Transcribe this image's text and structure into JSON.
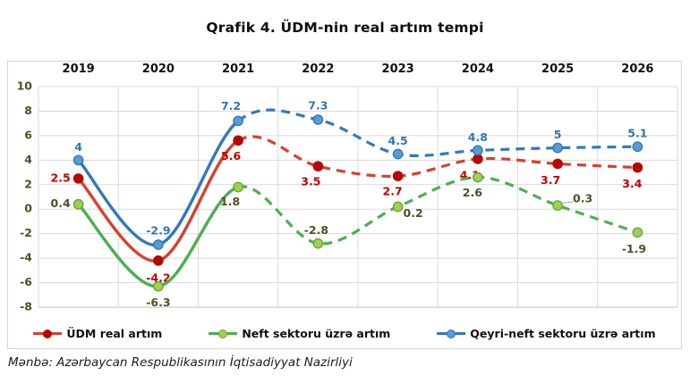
{
  "title": "Qrafik 4. ÜDM-nin real artım tempi",
  "source_note": "Mənbə: Azərbaycan Respublikasının İqtisadiyyat Nazirliyi",
  "chart_data": {
    "type": "line",
    "smooth": true,
    "title": "Qrafik 4. ÜDM-nin real artım tempi",
    "categories": [
      "2019",
      "2020",
      "2021",
      "2022",
      "2023",
      "2024",
      "2025",
      "2026"
    ],
    "ylim": [
      -8,
      10
    ],
    "ytick_step": 2,
    "yticks": [
      10,
      8,
      6,
      4,
      2,
      0,
      -2,
      -4,
      -6,
      -8
    ],
    "grid": true,
    "legend_position": "bottom",
    "forecast_dashed_from_category": "2021",
    "colors": {
      "gridline": "#d9d9d9",
      "plot_bottom_border": "#bfbfbf",
      "axis_tick_label": "#4a5227",
      "category_label": "#111111",
      "leader_line": "#a6a6a6"
    },
    "series": [
      {
        "name": "ÜDM real artım",
        "values": [
          2.5,
          -4.2,
          5.6,
          3.5,
          2.7,
          4.1,
          3.7,
          3.4
        ],
        "line_color": "#d8402f",
        "marker_fill": "#c00000",
        "marker_stroke": "#9e1b10",
        "label_color": "#c00000",
        "solid_until": 2,
        "labels": [
          {
            "text": "2.5",
            "dx": -20,
            "dy": 0
          },
          {
            "text": "-4.2",
            "dx": 0,
            "dy": 20
          },
          {
            "text": "5.6",
            "dx": -8,
            "dy": 18
          },
          {
            "text": "3.5",
            "dx": -8,
            "dy": 18
          },
          {
            "text": "2.7",
            "dx": -6,
            "dy": 18
          },
          {
            "text": "4.1",
            "dx": -9,
            "dy": 19
          },
          {
            "text": "3.7",
            "dx": -8,
            "dy": 19
          },
          {
            "text": "3.4",
            "dx": -6,
            "dy": 19
          }
        ]
      },
      {
        "name": "Neft sektoru üzrə artım",
        "values": [
          0.4,
          -6.3,
          1.8,
          -2.8,
          0.2,
          2.6,
          0.3,
          -1.9
        ],
        "line_color": "#4caf50",
        "marker_fill": "#a5ce4d",
        "marker_stroke": "#5ba63c",
        "label_color": "#4a5227",
        "solid_until": 2,
        "labels": [
          {
            "text": "0.4",
            "dx": -20,
            "dy": 0
          },
          {
            "text": "-6.3",
            "dx": 0,
            "dy": 19
          },
          {
            "text": "1.8",
            "dx": -9,
            "dy": 17
          },
          {
            "text": "-2.8",
            "dx": -2,
            "dy": -14
          },
          {
            "text": "0.2",
            "dx": 17,
            "dy": 8
          },
          {
            "text": "2.6",
            "dx": -6,
            "dy": 18
          },
          {
            "text": "0.3",
            "dx": 28,
            "dy": -7,
            "leader": true
          },
          {
            "text": "-1.9",
            "dx": -4,
            "dy": 19
          }
        ]
      },
      {
        "name": "Qeyri-neft sektoru üzrə artım",
        "values": [
          4,
          -2.9,
          7.2,
          7.3,
          4.5,
          4.8,
          5,
          5.1
        ],
        "line_color": "#3178be",
        "marker_fill": "#5b9bd5",
        "marker_stroke": "#2e75b6",
        "label_color": "#2e75b6",
        "solid_until": 2,
        "labels": [
          {
            "text": "4",
            "dx": 0,
            "dy": -14
          },
          {
            "text": "-2.9",
            "dx": 0,
            "dy": -15
          },
          {
            "text": "7.2",
            "dx": -8,
            "dy": -16
          },
          {
            "text": "7.3",
            "dx": 0,
            "dy": -15
          },
          {
            "text": "4.5",
            "dx": 0,
            "dy": -14
          },
          {
            "text": "4.8",
            "dx": 0,
            "dy": -14
          },
          {
            "text": "5",
            "dx": 0,
            "dy": -14
          },
          {
            "text": "5.1",
            "dx": 0,
            "dy": -14
          }
        ]
      }
    ]
  }
}
